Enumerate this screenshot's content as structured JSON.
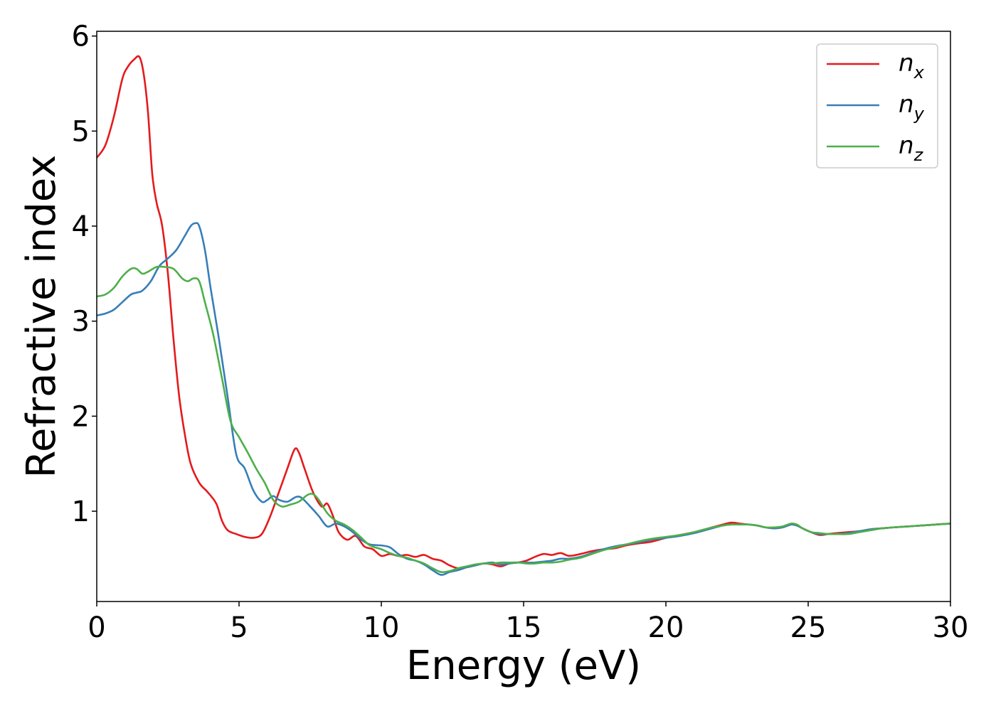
{
  "chart_data": {
    "type": "line",
    "title": "",
    "xlabel": "Energy (eV)",
    "ylabel": "Refractive index",
    "xlim": [
      0,
      30
    ],
    "ylim": [
      0.05,
      6.05
    ],
    "xticks": [
      0,
      5,
      10,
      15,
      20,
      25,
      30
    ],
    "yticks": [
      1,
      2,
      3,
      4,
      5,
      6
    ],
    "grid": false,
    "legend_position": "top-right",
    "series": [
      {
        "name": "n",
        "subscript": "x",
        "color": "#e41a1c",
        "x": [
          0,
          0.3,
          0.6,
          0.9,
          1.1,
          1.3,
          1.5,
          1.65,
          1.8,
          1.95,
          2.1,
          2.3,
          2.5,
          2.7,
          2.9,
          3.1,
          3.3,
          3.6,
          3.9,
          4.2,
          4.4,
          4.6,
          4.9,
          5.2,
          5.5,
          5.8,
          6.1,
          6.4,
          6.7,
          6.95,
          7.1,
          7.3,
          7.6,
          7.9,
          8.1,
          8.3,
          8.5,
          8.8,
          9.1,
          9.4,
          9.7,
          10,
          10.3,
          10.6,
          10.9,
          11.2,
          11.5,
          11.8,
          12.1,
          12.4,
          12.7,
          13,
          13.3,
          13.6,
          13.9,
          14.2,
          14.5,
          14.8,
          15.1,
          15.4,
          15.7,
          16,
          16.3,
          16.6,
          17,
          17.4,
          17.8,
          18.2,
          18.6,
          19,
          19.5,
          20,
          20.5,
          21,
          21.5,
          22,
          22.3,
          22.6,
          22.9,
          23.2,
          23.5,
          23.8,
          24.1,
          24.4,
          24.6,
          24.8,
          25.1,
          25.4,
          25.7,
          26,
          26.4,
          26.8,
          27.2,
          27.6,
          28,
          28.5,
          29,
          29.5,
          30
        ],
        "values": [
          4.72,
          4.85,
          5.15,
          5.55,
          5.68,
          5.75,
          5.78,
          5.6,
          5.2,
          4.55,
          4.25,
          4.0,
          3.5,
          2.8,
          2.2,
          1.8,
          1.5,
          1.3,
          1.2,
          1.08,
          0.9,
          0.8,
          0.76,
          0.73,
          0.72,
          0.76,
          0.95,
          1.2,
          1.45,
          1.65,
          1.62,
          1.45,
          1.2,
          1.05,
          1.08,
          0.95,
          0.78,
          0.7,
          0.74,
          0.63,
          0.6,
          0.53,
          0.55,
          0.53,
          0.54,
          0.52,
          0.54,
          0.5,
          0.48,
          0.43,
          0.4,
          0.41,
          0.43,
          0.45,
          0.44,
          0.42,
          0.45,
          0.46,
          0.48,
          0.52,
          0.55,
          0.54,
          0.56,
          0.53,
          0.55,
          0.58,
          0.6,
          0.61,
          0.64,
          0.66,
          0.68,
          0.72,
          0.75,
          0.78,
          0.82,
          0.86,
          0.88,
          0.87,
          0.86,
          0.85,
          0.83,
          0.82,
          0.83,
          0.86,
          0.85,
          0.82,
          0.78,
          0.75,
          0.76,
          0.77,
          0.78,
          0.79,
          0.81,
          0.82,
          0.83,
          0.84,
          0.85,
          0.86,
          0.87
        ]
      },
      {
        "name": "n",
        "subscript": "y",
        "color": "#377eb8",
        "x": [
          0,
          0.3,
          0.6,
          0.9,
          1.2,
          1.4,
          1.6,
          1.9,
          2.2,
          2.5,
          2.8,
          3.1,
          3.3,
          3.45,
          3.6,
          3.8,
          4.0,
          4.3,
          4.6,
          4.9,
          5.2,
          5.5,
          5.8,
          6.0,
          6.2,
          6.4,
          6.7,
          7.0,
          7.2,
          7.5,
          7.8,
          8.1,
          8.4,
          8.7,
          9.0,
          9.3,
          9.6,
          10.0,
          10.3,
          10.6,
          10.9,
          11.2,
          11.5,
          11.8,
          12.1,
          12.4,
          12.7,
          13.0,
          13.3,
          13.6,
          13.9,
          14.2,
          14.5,
          14.8,
          15.1,
          15.4,
          15.7,
          16.0,
          16.3,
          16.6,
          17.0,
          17.4,
          17.8,
          18.2,
          18.6,
          19.0,
          19.5,
          20,
          20.5,
          21,
          21.5,
          22,
          22.3,
          22.6,
          22.9,
          23.2,
          23.5,
          23.8,
          24.1,
          24.4,
          24.6,
          24.8,
          25.1,
          25.4,
          25.7,
          26,
          26.4,
          26.8,
          27.2,
          27.6,
          28,
          28.5,
          29,
          29.5,
          30
        ],
        "values": [
          3.06,
          3.08,
          3.12,
          3.2,
          3.28,
          3.3,
          3.32,
          3.42,
          3.58,
          3.66,
          3.75,
          3.9,
          4.0,
          4.03,
          4.0,
          3.75,
          3.35,
          2.8,
          2.2,
          1.6,
          1.45,
          1.22,
          1.1,
          1.12,
          1.16,
          1.12,
          1.1,
          1.15,
          1.14,
          1.05,
          0.95,
          0.84,
          0.87,
          0.84,
          0.78,
          0.7,
          0.65,
          0.64,
          0.62,
          0.55,
          0.5,
          0.48,
          0.44,
          0.38,
          0.33,
          0.36,
          0.38,
          0.41,
          0.43,
          0.45,
          0.46,
          0.44,
          0.45,
          0.46,
          0.46,
          0.46,
          0.47,
          0.48,
          0.5,
          0.5,
          0.52,
          0.56,
          0.6,
          0.63,
          0.65,
          0.67,
          0.7,
          0.72,
          0.74,
          0.77,
          0.81,
          0.85,
          0.86,
          0.86,
          0.86,
          0.85,
          0.83,
          0.82,
          0.83,
          0.86,
          0.85,
          0.82,
          0.78,
          0.76,
          0.76,
          0.76,
          0.77,
          0.79,
          0.81,
          0.82,
          0.83,
          0.84,
          0.85,
          0.86,
          0.87
        ]
      },
      {
        "name": "n",
        "subscript": "z",
        "color": "#4daf4a",
        "x": [
          0,
          0.3,
          0.6,
          0.9,
          1.2,
          1.4,
          1.6,
          1.8,
          2.1,
          2.4,
          2.7,
          3.0,
          3.2,
          3.4,
          3.6,
          3.8,
          4.1,
          4.4,
          4.7,
          5.0,
          5.3,
          5.6,
          5.9,
          6.2,
          6.5,
          6.8,
          7.1,
          7.4,
          7.6,
          7.8,
          8.1,
          8.4,
          8.7,
          9.0,
          9.3,
          9.6,
          10.0,
          10.3,
          10.6,
          10.9,
          11.2,
          11.5,
          11.8,
          12.1,
          12.4,
          12.7,
          13.0,
          13.3,
          13.6,
          13.9,
          14.2,
          14.5,
          14.8,
          15.1,
          15.4,
          15.7,
          16.0,
          16.3,
          16.6,
          17.0,
          17.4,
          17.8,
          18.2,
          18.6,
          19.0,
          19.5,
          20,
          20.5,
          21,
          21.5,
          22,
          22.3,
          22.6,
          22.9,
          23.2,
          23.5,
          23.8,
          24.1,
          24.4,
          24.6,
          24.8,
          25.1,
          25.4,
          25.7,
          26,
          26.4,
          26.8,
          27.2,
          27.6,
          28,
          28.5,
          29,
          29.5,
          30
        ],
        "values": [
          3.26,
          3.28,
          3.35,
          3.47,
          3.55,
          3.55,
          3.5,
          3.52,
          3.57,
          3.57,
          3.55,
          3.45,
          3.42,
          3.45,
          3.42,
          3.2,
          2.85,
          2.4,
          1.95,
          1.78,
          1.62,
          1.45,
          1.3,
          1.12,
          1.05,
          1.07,
          1.1,
          1.17,
          1.18,
          1.12,
          0.98,
          0.9,
          0.86,
          0.8,
          0.72,
          0.64,
          0.6,
          0.56,
          0.53,
          0.51,
          0.48,
          0.45,
          0.4,
          0.36,
          0.37,
          0.4,
          0.42,
          0.44,
          0.45,
          0.45,
          0.46,
          0.46,
          0.46,
          0.45,
          0.45,
          0.46,
          0.46,
          0.47,
          0.49,
          0.51,
          0.55,
          0.59,
          0.62,
          0.65,
          0.68,
          0.71,
          0.73,
          0.75,
          0.78,
          0.82,
          0.85,
          0.86,
          0.86,
          0.86,
          0.85,
          0.83,
          0.83,
          0.84,
          0.87,
          0.86,
          0.82,
          0.78,
          0.77,
          0.76,
          0.76,
          0.76,
          0.78,
          0.8,
          0.82,
          0.83,
          0.84,
          0.85,
          0.86,
          0.87
        ]
      }
    ]
  }
}
